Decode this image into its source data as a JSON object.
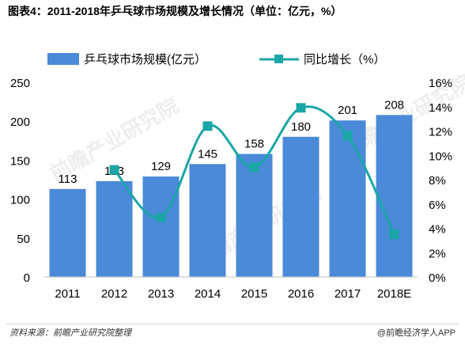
{
  "title": "图表4：2011-2018年乒乓球市场规模及增长情况（单位：亿元，%）",
  "legend": {
    "bar_label": "乒乓球市场规模(亿元）",
    "line_label": "同比增长（%）"
  },
  "watermark": "前瞻产业研究院",
  "footer": {
    "source": "资料来源：前瞻产业研究院整理",
    "brand": "@前瞻经济学人APP"
  },
  "colors": {
    "bar": "#4a8ad8",
    "line": "#1aa6a6",
    "marker": "#1aa6a6"
  },
  "chart_data": {
    "type": "bar",
    "categories": [
      "2011",
      "2012",
      "2013",
      "2014",
      "2015",
      "2016",
      "2017",
      "2018E"
    ],
    "series": [
      {
        "name": "乒乓球市场规模(亿元）",
        "type": "bar",
        "axis": "left",
        "values": [
          113,
          123,
          129,
          145,
          158,
          180,
          201,
          208
        ]
      },
      {
        "name": "同比增长（%）",
        "type": "line",
        "axis": "right",
        "smooth": true,
        "values": [
          null,
          8.8,
          4.9,
          12.4,
          9.0,
          13.9,
          11.6,
          3.5
        ]
      }
    ],
    "y_left": {
      "min": 0,
      "max": 250,
      "ticks": [
        "0",
        "50",
        "100",
        "150",
        "200",
        "250"
      ]
    },
    "y_right": {
      "min": 0,
      "max": 16,
      "ticks": [
        "0%",
        "2%",
        "4%",
        "6%",
        "8%",
        "10%",
        "12%",
        "14%",
        "16%"
      ]
    },
    "data_labels": [
      "113",
      "123",
      "129",
      "145",
      "158",
      "180",
      "201",
      "208"
    ],
    "legend_position": "top",
    "grid": false
  }
}
